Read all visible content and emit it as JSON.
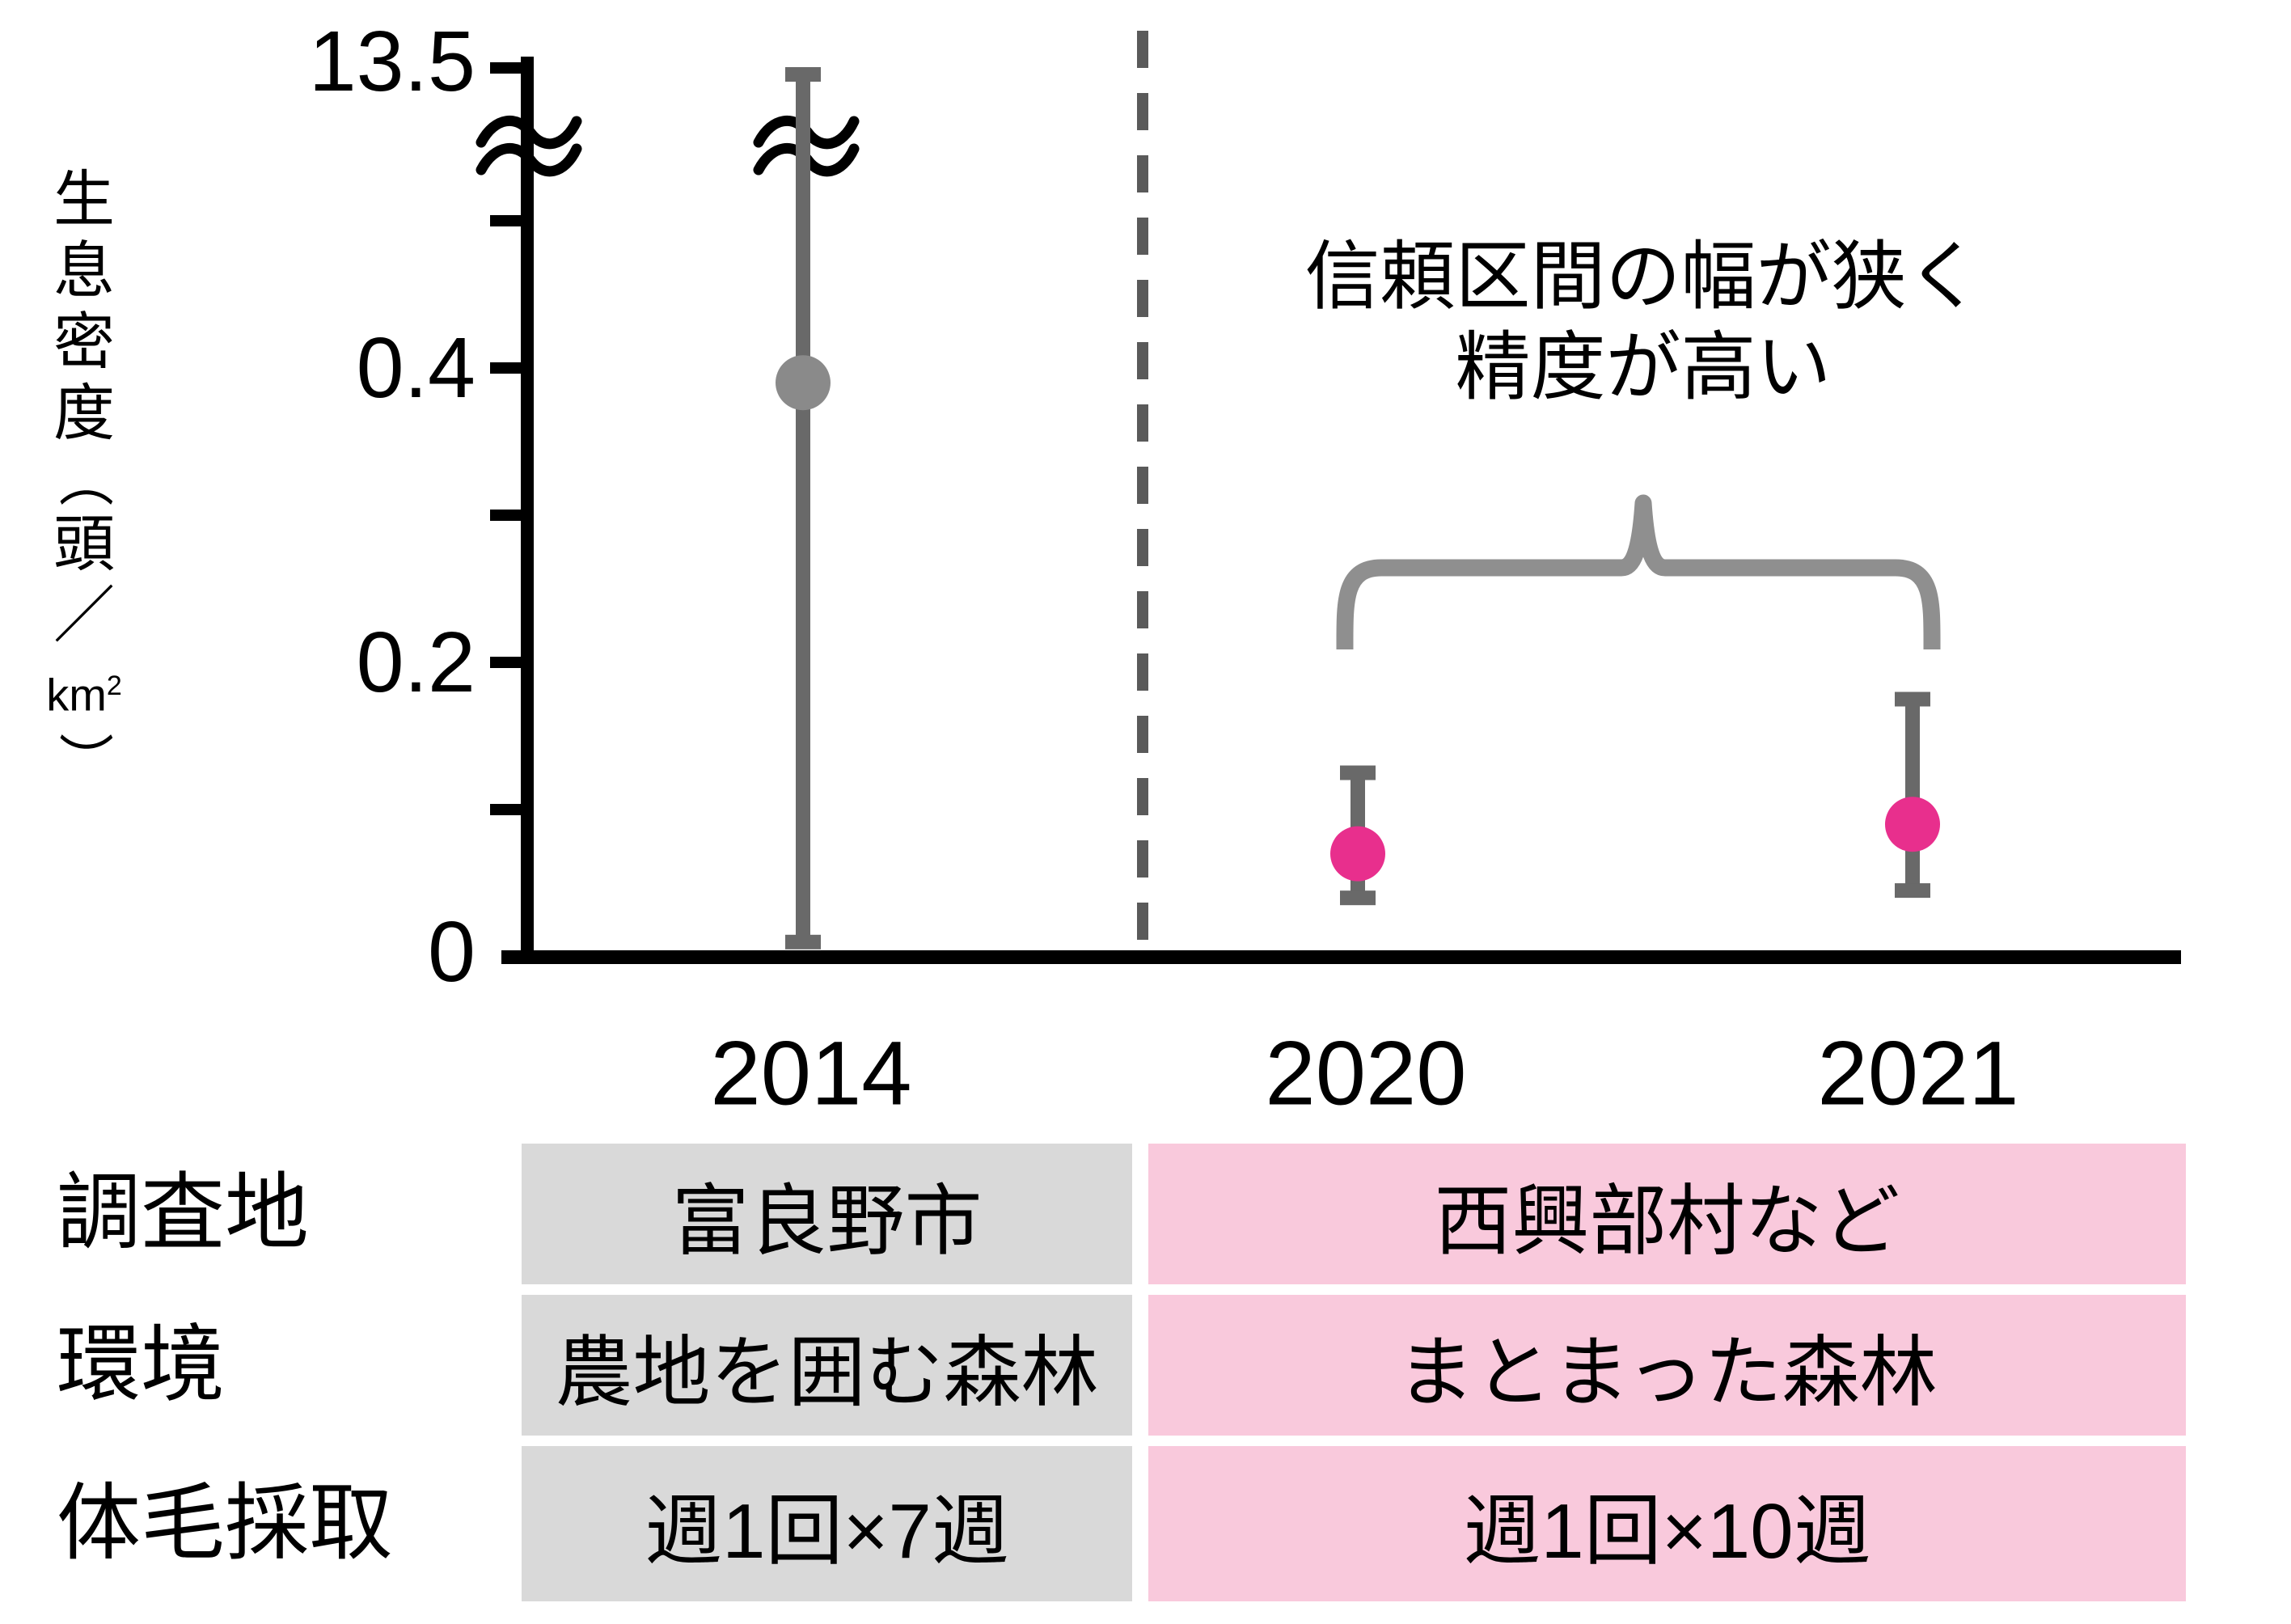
{
  "colors": {
    "axis": "#000000",
    "text": "#000000",
    "error_bar": "#696969",
    "marker_2014": "#8a8a8a",
    "marker_pink": "#e82f8d",
    "dashed_line": "#5a5a5a",
    "brace": "#8f8f8f",
    "table_gray_bg": "#d9d9d9",
    "table_pink_bg": "#f9c9dc"
  },
  "y_axis": {
    "title_chars": [
      "生",
      "息",
      "密",
      "度"
    ],
    "unit": {
      "open": "（",
      "head": "頭",
      "slash": "／",
      "km": "km",
      "sup": "2",
      "close": "）"
    },
    "tick_labels": {
      "top": "13.5",
      "t04": "0.4",
      "t02": "0.2",
      "zero": "0"
    }
  },
  "chart_data": {
    "type": "scatter",
    "title": "",
    "xlabel": "",
    "ylabel": "生息密度（頭/km²）",
    "categories": [
      "2014",
      "2020",
      "2021"
    ],
    "series": [
      {
        "name": "2014",
        "value": 0.39,
        "ci_low": 0.01,
        "ci_high": 13.5,
        "marker": "circle",
        "color_key": "marker_2014",
        "crosses_axis_break": true
      },
      {
        "name": "2020",
        "value": 0.07,
        "ci_low": 0.04,
        "ci_high": 0.125,
        "marker": "circle",
        "color_key": "marker_pink",
        "crosses_axis_break": false
      },
      {
        "name": "2021",
        "value": 0.09,
        "ci_low": 0.045,
        "ci_high": 0.175,
        "marker": "circle",
        "color_key": "marker_pink",
        "crosses_axis_break": false
      }
    ],
    "y_axis_structure": {
      "type": "broken",
      "linear_range": [
        0,
        0.5
      ],
      "top_value": 13.5,
      "labeled_ticks": [
        0,
        0.2,
        0.4,
        13.5
      ],
      "unlabeled_ticks": [
        0.1,
        0.3,
        0.5
      ],
      "grid": false
    },
    "legend": "none",
    "separator": "dashed vertical line between 2014 and 2020 columns"
  },
  "annotation": {
    "line1": "信頼区間の幅が狭く",
    "line2": "精度が高い",
    "brace_over": [
      "2020",
      "2021"
    ]
  },
  "table": {
    "row_labels": [
      "調査地",
      "環境",
      "体毛採取"
    ],
    "col_2014": {
      "cells": [
        "富良野市",
        "農地を囲む森林",
        "週1回×7週"
      ]
    },
    "col_2020_2021": {
      "cells": [
        "西興部村など",
        "まとまった森林",
        "週1回×10週"
      ]
    }
  }
}
